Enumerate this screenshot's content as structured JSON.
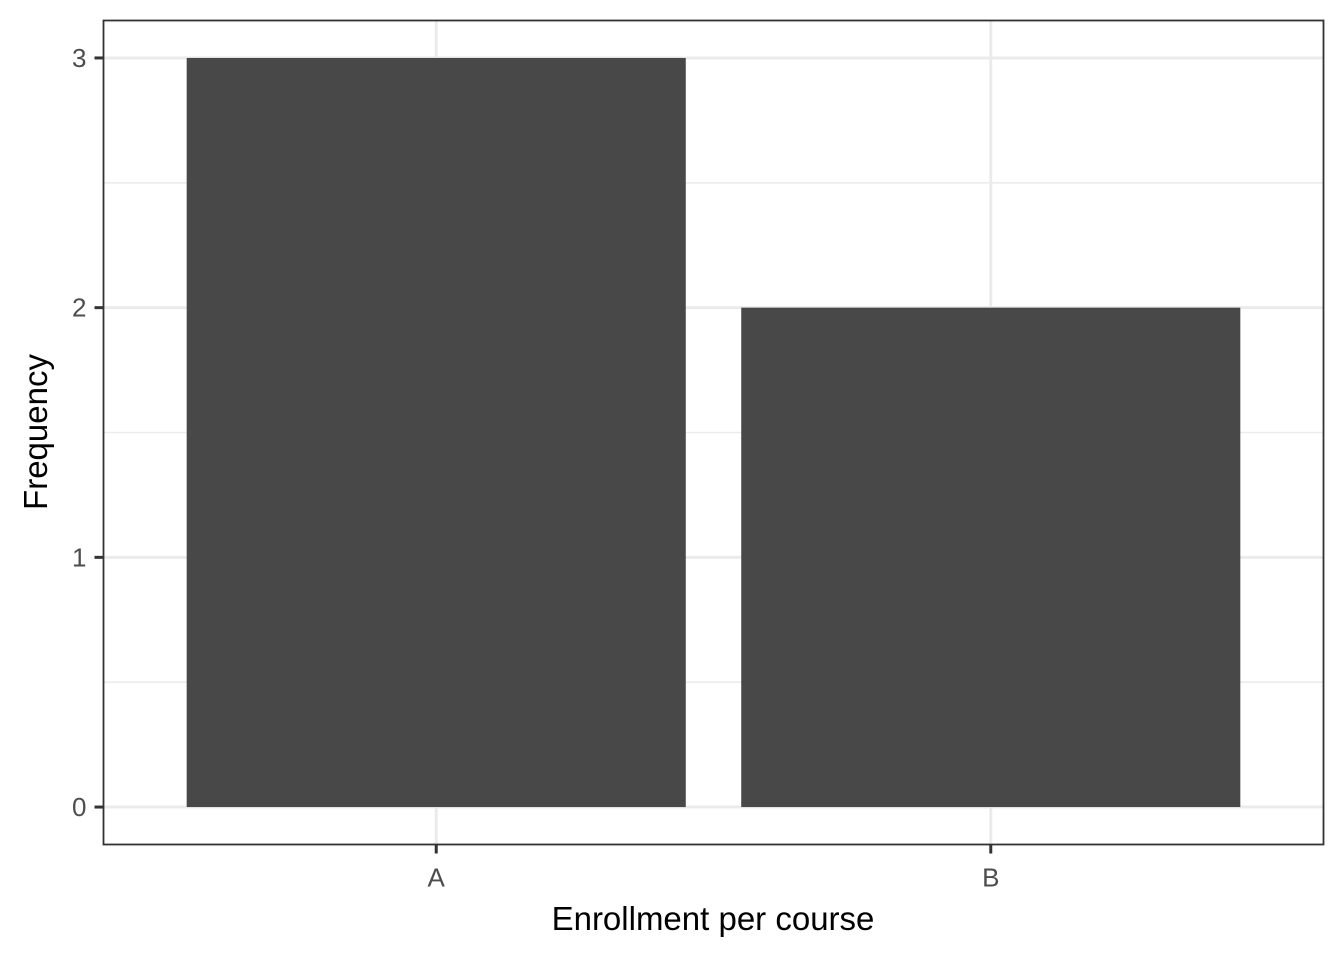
{
  "chart_data": {
    "type": "bar",
    "categories": [
      "A",
      "B"
    ],
    "values": [
      3,
      2
    ],
    "title": "",
    "xlabel": "Enrollment per course",
    "ylabel": "Frequency",
    "ylim": [
      -0.15,
      3.15
    ],
    "yticks": [
      0,
      1,
      2,
      3
    ],
    "yticklabels": [
      "0",
      "1",
      "2",
      "3"
    ],
    "grid": true,
    "legend": "none",
    "colors": {
      "bar": "#484848",
      "panel_background": "#ffffff",
      "grid": "#ebebeb",
      "border": "#333333"
    }
  }
}
